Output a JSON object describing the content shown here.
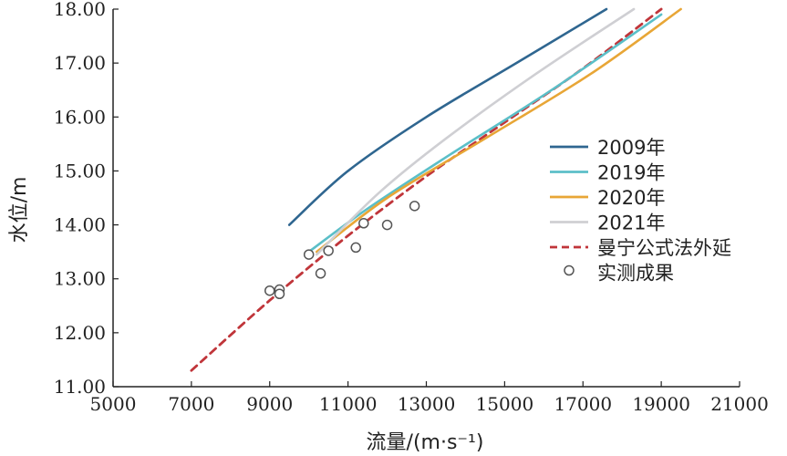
{
  "chart_data": {
    "type": "line",
    "title": "",
    "xlabel": "流量/(m·s⁻¹)",
    "ylabel": "水位/m",
    "xlim": [
      5000,
      21000
    ],
    "ylim": [
      11.0,
      18.0
    ],
    "x_ticks": [
      "5000",
      "7000",
      "9000",
      "11000",
      "13000",
      "15000",
      "17000",
      "19000",
      "21000"
    ],
    "y_ticks": [
      "11.00",
      "12.00",
      "13.00",
      "14.00",
      "15.00",
      "16.00",
      "17.00",
      "18.00"
    ],
    "grid": false,
    "legend_position": "right",
    "series": [
      {
        "name": "2009年",
        "color": "#2f6690",
        "style": "solid",
        "points": [
          [
            9500,
            14.0
          ],
          [
            11000,
            15.0
          ],
          [
            13000,
            16.0
          ],
          [
            15300,
            17.0
          ],
          [
            17600,
            18.0
          ]
        ]
      },
      {
        "name": "2019年",
        "color": "#5bbfc8",
        "style": "solid",
        "points": [
          [
            10000,
            13.5
          ],
          [
            11500,
            14.3
          ],
          [
            13600,
            15.3
          ],
          [
            16200,
            16.5
          ],
          [
            19000,
            17.9
          ]
        ]
      },
      {
        "name": "2020年",
        "color": "#e8a636",
        "style": "solid",
        "points": [
          [
            10200,
            13.5
          ],
          [
            12000,
            14.5
          ],
          [
            14500,
            15.6
          ],
          [
            17200,
            16.8
          ],
          [
            19500,
            18.0
          ]
        ]
      },
      {
        "name": "2021年",
        "color": "#cfcfd3",
        "style": "solid",
        "points": [
          [
            10200,
            13.45
          ],
          [
            11800,
            14.6
          ],
          [
            13500,
            15.6
          ],
          [
            15800,
            16.8
          ],
          [
            18300,
            18.0
          ]
        ]
      },
      {
        "name": "曼宁公式法外延",
        "color": "#c0353a",
        "style": "dashed",
        "points": [
          [
            7000,
            11.3
          ],
          [
            9000,
            12.6
          ],
          [
            11000,
            13.8
          ],
          [
            13000,
            14.9
          ],
          [
            15000,
            15.9
          ],
          [
            17000,
            16.9
          ],
          [
            19000,
            18.0
          ]
        ]
      }
    ],
    "scatter": {
      "name": "实测成果",
      "color": "#555555",
      "points": [
        [
          9000,
          12.78
        ],
        [
          9250,
          12.8
        ],
        [
          9250,
          12.72
        ],
        [
          10000,
          13.45
        ],
        [
          10300,
          13.1
        ],
        [
          10500,
          13.52
        ],
        [
          11200,
          13.58
        ],
        [
          11400,
          14.03
        ],
        [
          12000,
          14.0
        ],
        [
          12700,
          14.35
        ]
      ]
    }
  }
}
